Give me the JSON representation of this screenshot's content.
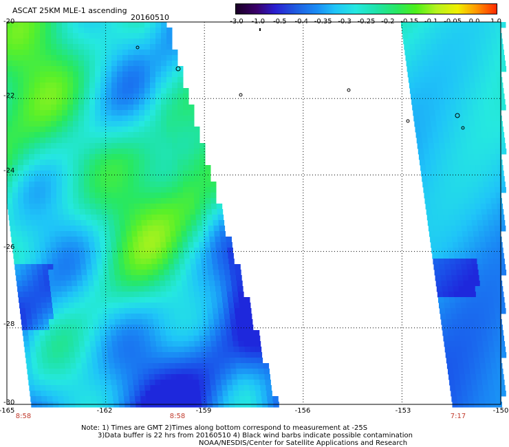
{
  "header": {
    "title": "ASCAT 25KM MLE-1 ascending",
    "date": "20160510"
  },
  "colorbar": {
    "ticks": [
      "-3.0",
      "-1.0",
      "-0.5",
      "-0.4",
      "-0.35",
      "-0.3",
      "-0.25",
      "-0.2",
      "-0.15",
      "-0.1",
      "-0.05",
      "0.0",
      "1.0"
    ],
    "colors": [
      "#1a0026",
      "#3a006a",
      "#2a1fd0",
      "#1f5be0",
      "#1a8cf5",
      "#1fc4f8",
      "#25e8e0",
      "#1fe3a8",
      "#28e860",
      "#4df01a",
      "#b6f21e",
      "#f0f000",
      "#ff9a00",
      "#ff2a00"
    ]
  },
  "map": {
    "lat_labels": [
      "-20",
      "-22",
      "-24",
      "-26",
      "-28",
      "-30"
    ],
    "lon_labels": [
      "-165",
      "-162",
      "-159",
      "-156",
      "-153",
      "-150"
    ],
    "time_labels": [
      "8:58",
      "8:58",
      "7:17"
    ]
  },
  "notes": {
    "line1": "Note: 1) Times are GMT 2)Times along bottom correspond to measurement at -25S",
    "line2": "3)Data buffer is 22 hrs from 20160510 4) Black wind barbs indicate possible contamination",
    "line3": "NOAA/NESDIS/Center for Satellite Applications and Research"
  }
}
